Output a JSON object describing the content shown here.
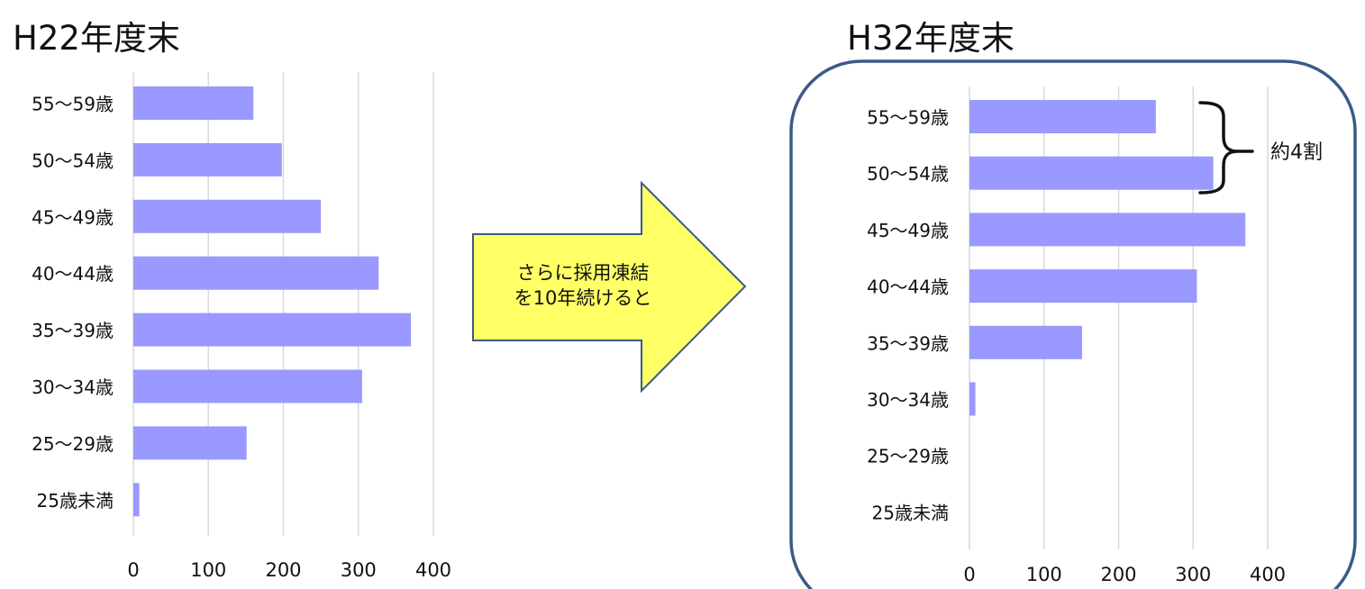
{
  "colors": {
    "bar": "#9999ff",
    "grid": "#d9d9d9",
    "text": "#111111",
    "arrow_fill": "#ffff66",
    "arrow_stroke": "#3c5a88",
    "frame_stroke": "#3c5a88"
  },
  "arrow": {
    "text_line1": "さらに採用凍結",
    "text_line2": "を10年続けると"
  },
  "annotation": {
    "label": "約4割",
    "bracket_icon": "right-curly-brace-icon"
  },
  "chart_data": [
    {
      "type": "bar",
      "orientation": "horizontal",
      "title": "H22年度末",
      "categories": [
        "55〜59歳",
        "50〜54歳",
        "45〜49歳",
        "40〜44歳",
        "35〜39歳",
        "30〜34歳",
        "25〜29歳",
        "25歳未満"
      ],
      "values": [
        160,
        198,
        250,
        327,
        370,
        305,
        151,
        8
      ],
      "xticks": [
        "0",
        "100",
        "200",
        "300",
        "400"
      ],
      "xlim": [
        0,
        400
      ],
      "grid": true
    },
    {
      "type": "bar",
      "orientation": "horizontal",
      "title": "H32年度末",
      "categories": [
        "55〜59歳",
        "50〜54歳",
        "45〜49歳",
        "40〜44歳",
        "35〜39歳",
        "30〜34歳",
        "25〜29歳",
        "25歳未満"
      ],
      "values": [
        250,
        327,
        370,
        305,
        151,
        8,
        0,
        0
      ],
      "xticks": [
        "0",
        "100",
        "200",
        "300",
        "400"
      ],
      "xlim": [
        0,
        400
      ],
      "grid": true
    }
  ]
}
